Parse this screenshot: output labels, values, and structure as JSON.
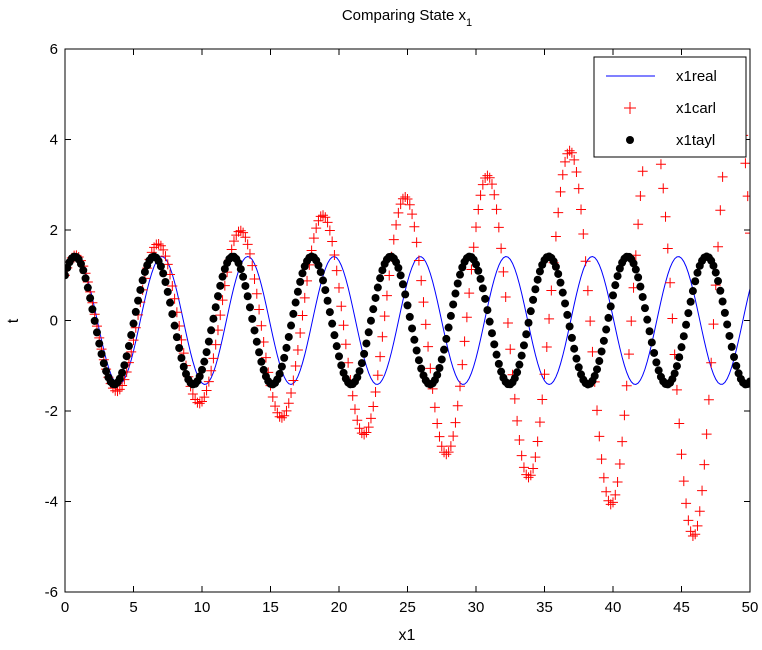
{
  "chart_data": {
    "type": "line",
    "title": "Comparing State x",
    "title_subscript": "1",
    "xlabel": "x1",
    "ylabel": "t",
    "xlim": [
      0,
      50
    ],
    "ylim": [
      -6,
      6
    ],
    "xticks": [
      0,
      5,
      10,
      15,
      20,
      25,
      30,
      35,
      40,
      45,
      50
    ],
    "yticks": [
      -6,
      -4,
      -2,
      0,
      2,
      4,
      6
    ],
    "xtick_labels": [
      "0",
      "5",
      "10",
      "15",
      "20",
      "25",
      "30",
      "35",
      "40",
      "45",
      "50"
    ],
    "ytick_labels": [
      "-6",
      "-4",
      "-2",
      "0",
      "2",
      "4",
      "6"
    ],
    "grid": false,
    "legend_position": "top-right",
    "x_start": 0,
    "x_end": 50,
    "samples": 301,
    "series": [
      {
        "name": "x1real",
        "style": "line",
        "color": "#0000ff",
        "model": "amplitude * cos(omega * t - phase)",
        "amplitude": 1.414,
        "omega": 1.0,
        "phase": 0.785,
        "growth": 0
      },
      {
        "name": "x1carl",
        "style": "plus-marker",
        "color": "#ff0000",
        "model": "amplitude * exp(growth * t) * cos(omega * t - phase)",
        "amplitude": 1.414,
        "omega": 1.045,
        "phase": 0.785,
        "growth": 0.0265
      },
      {
        "name": "x1tayl",
        "style": "dot-marker",
        "color": "#000000",
        "model": "amplitude * cos(omega * t - phase)",
        "amplitude": 1.414,
        "omega": 1.09,
        "phase": 0.785,
        "growth": 0
      }
    ]
  }
}
